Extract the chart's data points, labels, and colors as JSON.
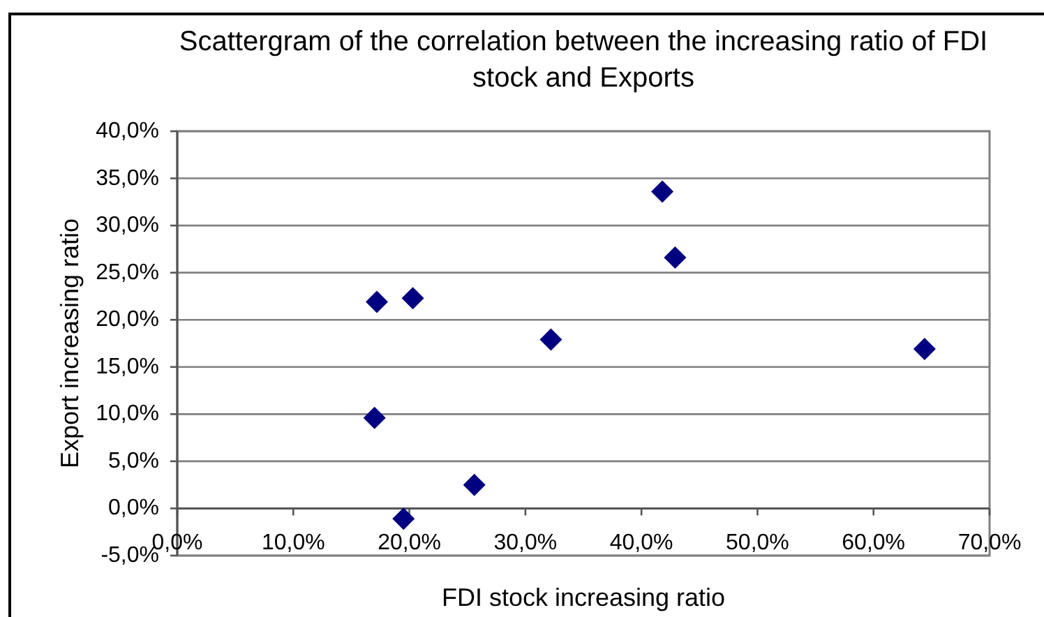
{
  "chart_data": {
    "type": "scatter",
    "title": "Scattergram of the correlation between the increasing ratio of FDI stock and Exports",
    "xlabel": "FDI stock increasing ratio",
    "ylabel": "Export increasing ratio",
    "x": [
      17.0,
      17.2,
      19.5,
      20.3,
      25.6,
      32.2,
      41.8,
      42.9,
      64.4
    ],
    "series": [
      {
        "color": "#000080",
        "values": [
          9.6,
          21.9,
          -1.1,
          22.3,
          2.5,
          17.9,
          33.6,
          26.6,
          16.9
        ]
      }
    ],
    "xlim": [
      0,
      70
    ],
    "xticks": [
      {
        "value": 0,
        "label": "0,0%"
      },
      {
        "value": 10,
        "label": "10,0%"
      },
      {
        "value": 20,
        "label": "20,0%"
      },
      {
        "value": 30,
        "label": "30,0%"
      },
      {
        "value": 40,
        "label": "40,0%"
      },
      {
        "value": 50,
        "label": "50,0%"
      },
      {
        "value": 60,
        "label": "60,0%"
      },
      {
        "value": 70,
        "label": "70,0%"
      }
    ],
    "ylim": [
      -5,
      40
    ],
    "yticks": [
      {
        "value": -5,
        "label": "-5,0%"
      },
      {
        "value": 0,
        "label": "0,0%"
      },
      {
        "value": 5,
        "label": "5,0%"
      },
      {
        "value": 10,
        "label": "10,0%"
      },
      {
        "value": 15,
        "label": "15,0%"
      },
      {
        "value": 20,
        "label": "20,0%"
      },
      {
        "value": 25,
        "label": "25,0%"
      },
      {
        "value": 30,
        "label": "30,0%"
      },
      {
        "value": 35,
        "label": "35,0%"
      },
      {
        "value": 40,
        "label": "40,0%"
      }
    ],
    "grid": "y",
    "marker": "diamond"
  }
}
